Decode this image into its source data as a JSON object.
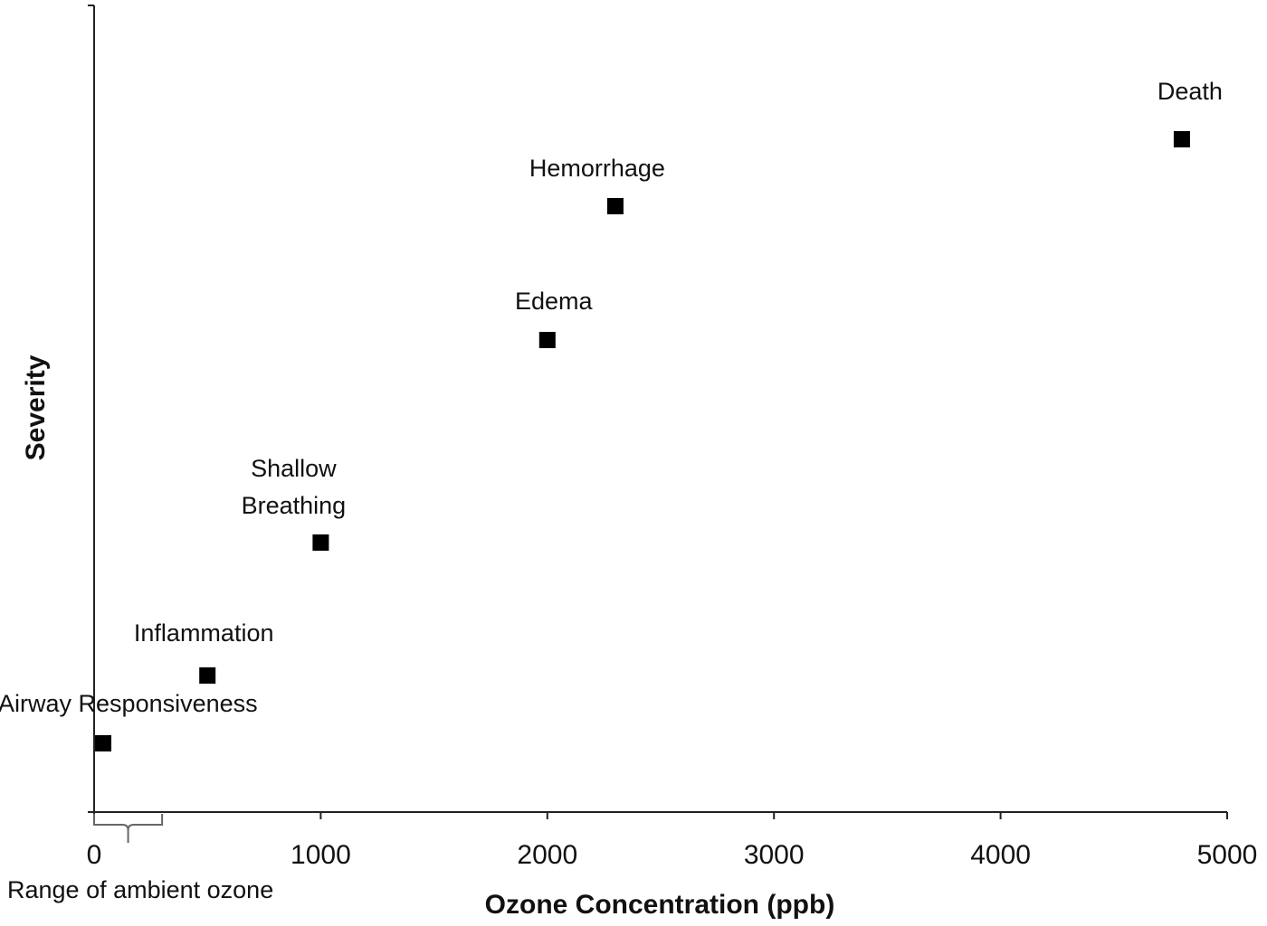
{
  "chart_data": {
    "type": "scatter",
    "title": "",
    "xlabel": "Ozone Concentration (ppb)",
    "ylabel": "Severity",
    "xlim": [
      0,
      5000
    ],
    "x_ticks": [
      "0",
      "1000",
      "2000",
      "3000",
      "4000",
      "5000"
    ],
    "y_ticks_shown": false,
    "grid": false,
    "legend": "none",
    "marker": "square",
    "marker_color": "#000000",
    "points": [
      {
        "label": "Airway Responsiveness",
        "x": 40,
        "y": 1
      },
      {
        "label": "Inflammation",
        "x": 500,
        "y": 2
      },
      {
        "label": "Shallow Breathing",
        "x": 1000,
        "y": 3
      },
      {
        "label": "Edema",
        "x": 2000,
        "y": 4
      },
      {
        "label": "Hemorrhage",
        "x": 2300,
        "y": 5
      },
      {
        "label": "Death",
        "x": 4800,
        "y": 6
      }
    ],
    "annotations": [
      {
        "text": "Range of ambient ozone",
        "x_start": 0,
        "x_end": 300
      }
    ]
  }
}
